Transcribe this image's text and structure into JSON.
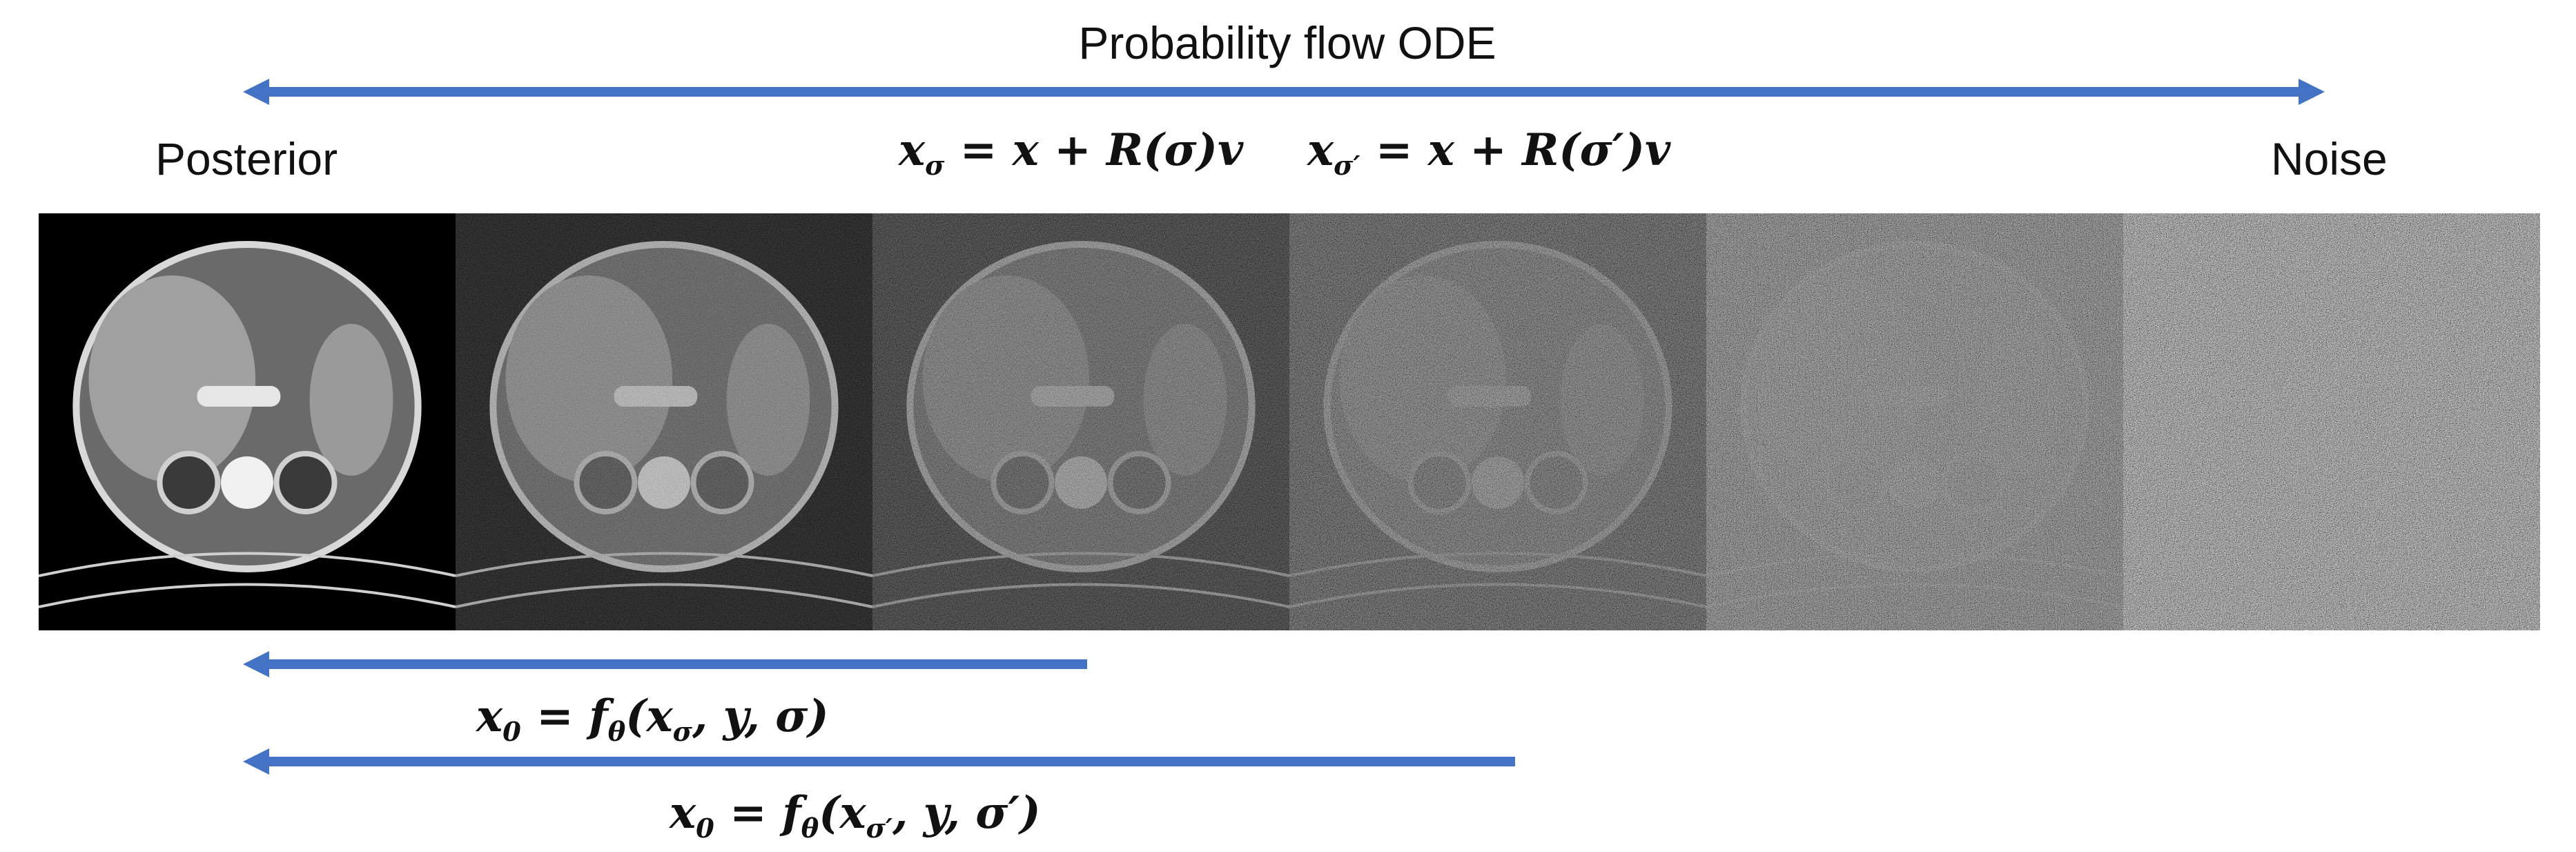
{
  "title": "Probability flow ODE",
  "left_label": "Posterior",
  "right_label": "Noise",
  "equations": {
    "forward_sigma": "x_σ = x + R(σ)v",
    "forward_sigma_prime": "x_σ′ = x + R(σ′)v",
    "denoise_sigma": "x₀ = f_θ(x_σ, y, σ)",
    "denoise_sigma_prime": "x₀ = f_θ(x_σ′, y, σ′)"
  },
  "colors": {
    "arrow": "#4472C4",
    "text": "#111111"
  },
  "panels": [
    {
      "noise_level": 0.0
    },
    {
      "noise_level": 0.2
    },
    {
      "noise_level": 0.42
    },
    {
      "noise_level": 0.62
    },
    {
      "noise_level": 0.84
    },
    {
      "noise_level": 1.0
    }
  ]
}
